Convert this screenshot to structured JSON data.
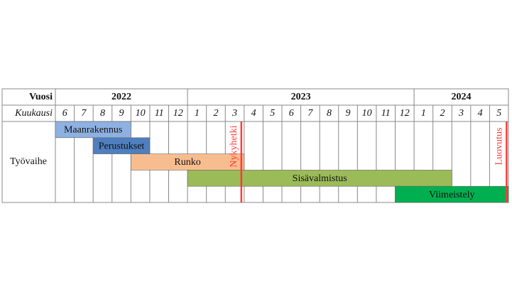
{
  "chart_data": {
    "type": "gantt",
    "year_label": "Vuosi",
    "month_label": "Kuukausi",
    "row_label": "Työvaihe",
    "categories": [
      "6",
      "7",
      "8",
      "9",
      "10",
      "11",
      "12",
      "1",
      "2",
      "3",
      "4",
      "5",
      "6",
      "7",
      "8",
      "9",
      "10",
      "11",
      "12",
      "1",
      "2",
      "3",
      "4",
      "5"
    ],
    "category_years": [
      "2022",
      "2022",
      "2022",
      "2022",
      "2022",
      "2022",
      "2022",
      "2023",
      "2023",
      "2023",
      "2023",
      "2023",
      "2023",
      "2023",
      "2023",
      "2023",
      "2023",
      "2023",
      "2023",
      "2024",
      "2024",
      "2024",
      "2024",
      "2024"
    ],
    "xlim": [
      0,
      24
    ],
    "series": [
      {
        "name": "Maanrakennus",
        "color": "#8eb1e2",
        "start": 0,
        "end": 4
      },
      {
        "name": "Perustukset",
        "color": "#4f7fbf",
        "start": 2,
        "end": 5
      },
      {
        "name": "Runko",
        "color": "#f8bd8f",
        "start": 4,
        "end": 10
      },
      {
        "name": "Sisävalmistus",
        "color": "#9bbb59",
        "start": 7,
        "end": 21
      },
      {
        "name": "Viimeistely",
        "color": "#00b050",
        "start": 18,
        "end": 24
      }
    ],
    "markers": [
      {
        "label": "Nykyhetki",
        "x": 9.85,
        "color": "#ff3b3b"
      },
      {
        "label": "Luovutus",
        "x": 23.9,
        "color": "#ff3b3b"
      }
    ]
  }
}
